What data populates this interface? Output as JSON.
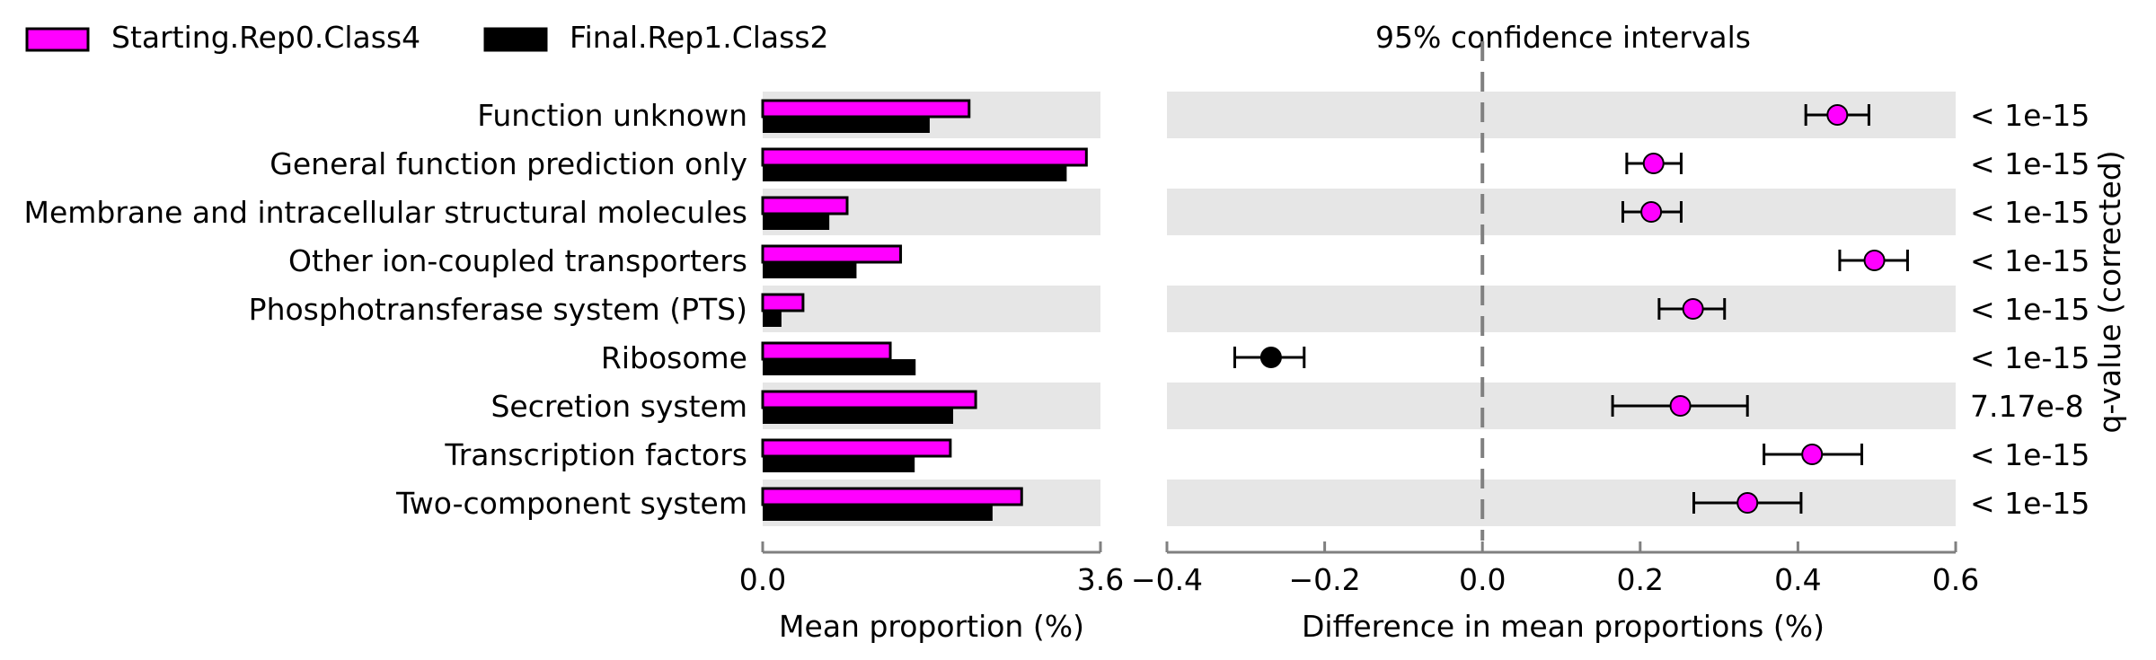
{
  "legend": {
    "placement": "top-left",
    "entries": [
      {
        "label": "Starting.Rep0.Class4",
        "color": "#ff00ff"
      },
      {
        "label": "Final.Rep1.Class2",
        "color": "#000000"
      }
    ]
  },
  "chart_data": [
    {
      "type": "bar",
      "orientation": "horizontal",
      "categories": [
        "Function unknown",
        "General function prediction only",
        "Membrane and intracellular structural molecules",
        "Other ion-coupled transporters",
        "Phosphotransferase system (PTS)",
        "Ribosome",
        "Secretion system",
        "Transcription factors",
        "Two-component system"
      ],
      "series": [
        {
          "name": "Starting.Rep0.Class4",
          "color": "#ff00ff",
          "values": [
            2.2,
            3.45,
            0.9,
            1.47,
            0.43,
            1.36,
            2.27,
            2.0,
            2.76
          ]
        },
        {
          "name": "Final.Rep1.Class2",
          "color": "#000000",
          "values": [
            1.78,
            3.24,
            0.71,
            1.0,
            0.2,
            1.63,
            2.03,
            1.62,
            2.45
          ]
        }
      ],
      "xlabel": "Mean proportion (%)",
      "xlim": [
        0,
        3.6
      ],
      "xticks": [
        "0.0",
        "3.6"
      ],
      "row_shading": true
    },
    {
      "type": "scatter",
      "title": "95% confidence intervals",
      "categories": [
        "Function unknown",
        "General function prediction only",
        "Membrane and intracellular structural molecules",
        "Other ion-coupled transporters",
        "Phosphotransferase system (PTS)",
        "Ribosome",
        "Secretion system",
        "Transcription factors",
        "Two-component system"
      ],
      "points": [
        {
          "value": 0.45,
          "ci": [
            0.41,
            0.49
          ],
          "color": "#ff00ff"
        },
        {
          "value": 0.217,
          "ci": [
            0.183,
            0.252
          ],
          "color": "#ff00ff"
        },
        {
          "value": 0.214,
          "ci": [
            0.178,
            0.252
          ],
          "color": "#ff00ff"
        },
        {
          "value": 0.497,
          "ci": [
            0.453,
            0.539
          ],
          "color": "#ff00ff"
        },
        {
          "value": 0.267,
          "ci": [
            0.224,
            0.307
          ],
          "color": "#ff00ff"
        },
        {
          "value": -0.268,
          "ci": [
            -0.314,
            -0.226
          ],
          "color": "#000000"
        },
        {
          "value": 0.251,
          "ci": [
            0.165,
            0.336
          ],
          "color": "#ff00ff"
        },
        {
          "value": 0.418,
          "ci": [
            0.357,
            0.481
          ],
          "color": "#ff00ff"
        },
        {
          "value": 0.336,
          "ci": [
            0.268,
            0.404
          ],
          "color": "#ff00ff"
        }
      ],
      "qvalues": [
        "< 1e-15",
        "< 1e-15",
        "< 1e-15",
        "< 1e-15",
        "< 1e-15",
        "< 1e-15",
        "7.17e-8",
        "< 1e-15",
        "< 1e-15"
      ],
      "qvalue_label": "q-value (corrected)",
      "xlabel": "Difference in mean proportions (%)",
      "xlim": [
        -0.4,
        0.6
      ],
      "xticks": [
        "−0.4",
        "−0.2",
        "0.0",
        "0.2",
        "0.4",
        "0.6"
      ],
      "reference_line": 0.0,
      "row_shading": true
    }
  ]
}
